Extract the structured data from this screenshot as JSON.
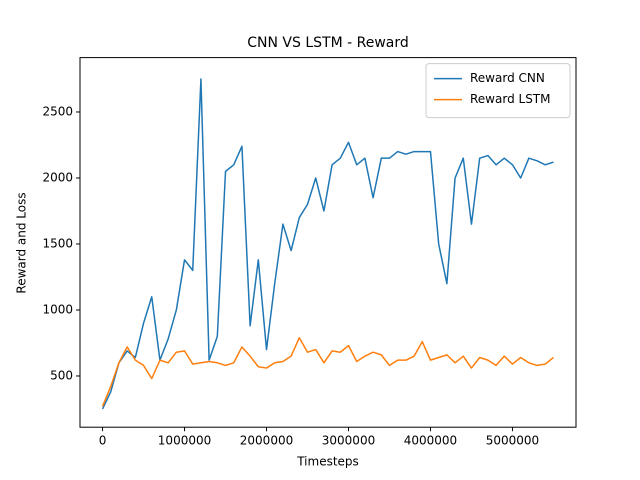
{
  "chart_data": {
    "type": "line",
    "title": "CNN VS LSTM - Reward",
    "xlabel": "Timesteps",
    "ylabel": "Reward and Loss",
    "x": [
      0,
      100000,
      200000,
      300000,
      400000,
      500000,
      600000,
      700000,
      800000,
      900000,
      1000000,
      1100000,
      1200000,
      1300000,
      1400000,
      1500000,
      1600000,
      1700000,
      1800000,
      1900000,
      2000000,
      2100000,
      2200000,
      2300000,
      2400000,
      2500000,
      2600000,
      2700000,
      2800000,
      2900000,
      3000000,
      3100000,
      3200000,
      3300000,
      3400000,
      3500000,
      3600000,
      3700000,
      3800000,
      3900000,
      4000000,
      4100000,
      4200000,
      4300000,
      4400000,
      4500000,
      4600000,
      4700000,
      4800000,
      4900000,
      5000000,
      5100000,
      5200000,
      5300000,
      5400000,
      5500000
    ],
    "series": [
      {
        "name": "Reward CNN",
        "color": "#1f77b4",
        "values": [
          250,
          380,
          600,
          690,
          640,
          900,
          1100,
          620,
          780,
          1000,
          1380,
          1300,
          2750,
          620,
          800,
          2050,
          2100,
          2240,
          880,
          1380,
          700,
          1200,
          1650,
          1450,
          1700,
          1800,
          2000,
          1750,
          2100,
          2150,
          2270,
          2100,
          2150,
          1850,
          2150,
          2150,
          2200,
          2180,
          2200,
          2200,
          2200,
          1500,
          1200,
          2000,
          2150,
          1650,
          2150,
          2170,
          2100,
          2150,
          2100,
          2000,
          2150,
          2130,
          2100,
          2120
        ]
      },
      {
        "name": "Reward LSTM",
        "color": "#ff7f0e",
        "values": [
          270,
          420,
          600,
          720,
          620,
          580,
          480,
          620,
          600,
          680,
          690,
          590,
          600,
          610,
          600,
          580,
          600,
          720,
          650,
          570,
          560,
          600,
          610,
          650,
          790,
          680,
          700,
          600,
          690,
          680,
          730,
          610,
          650,
          680,
          660,
          580,
          620,
          620,
          650,
          760,
          620,
          640,
          660,
          600,
          650,
          560,
          640,
          620,
          580,
          650,
          590,
          640,
          600,
          580,
          590,
          640
        ]
      }
    ],
    "xlim": [
      -275000,
      5775000
    ],
    "ylim": [
      112,
      2912
    ],
    "xticks": [
      0,
      1000000,
      2000000,
      3000000,
      4000000,
      5000000
    ],
    "yticks": [
      500,
      1000,
      1500,
      2000,
      2500
    ],
    "legend": "upper right"
  }
}
